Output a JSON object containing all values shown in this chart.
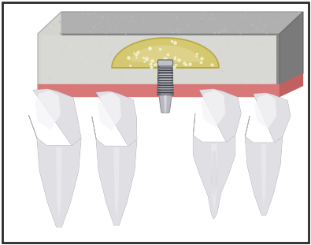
{
  "figsize": [
    3.95,
    3.11
  ],
  "dpi": 100,
  "bg": "#ffffff",
  "border_color": "#2a2a2a",
  "bone_outer_color": "#8a8a8a",
  "bone_inner_color": "#d5d5d0",
  "bone_top_color": "#b0b0b0",
  "bone_right_color": "#7a7a7a",
  "bone_left_color": "#606060",
  "gum_color": "#d87878",
  "tooth_base": "#e0e0e4",
  "tooth_light": "#f5f5f8",
  "tooth_mid": "#c8c8cc",
  "tooth_dark": "#a8a8b0",
  "implant_mid": "#909098",
  "implant_light": "#c0c0c8",
  "implant_dark": "#505058",
  "implant_thread_light": "#d0d0d8",
  "implant_thread_dark": "#404048",
  "abutment_color": "#b8b8c0",
  "graft_color": "#d4c870",
  "graft_light": "#e8dca0",
  "graft_border": "#b8a840",
  "graft_dot": "#f0f0d0"
}
